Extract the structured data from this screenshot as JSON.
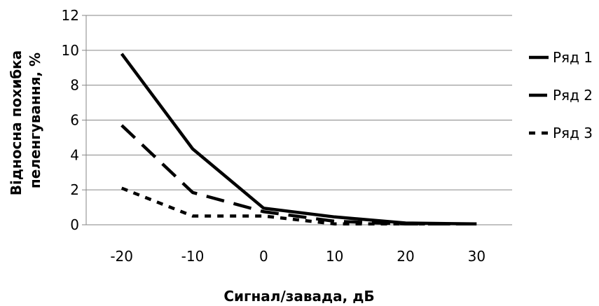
{
  "chart_data": {
    "type": "line",
    "title": "",
    "x": [
      -20,
      -10,
      0,
      10,
      20,
      30
    ],
    "x_tick_labels": [
      "-20",
      "-10",
      "0",
      "10",
      "20",
      "30"
    ],
    "xlabel": "Сигнал/завада, дБ",
    "ylabel_lines": [
      "Відносна похибка",
      "пеленгування, %"
    ],
    "ylim": [
      0,
      12
    ],
    "y_ticks": [
      0,
      2,
      4,
      6,
      8,
      10,
      12
    ],
    "y_tick_labels": [
      "0",
      "2",
      "4",
      "6",
      "8",
      "10",
      "12"
    ],
    "grid": "horizontal",
    "legend_position": "right",
    "series": [
      {
        "name": "Ряд 1",
        "style": "solid",
        "values": [
          9.8,
          4.35,
          0.95,
          0.45,
          0.1,
          0.05
        ]
      },
      {
        "name": "Ряд 2",
        "style": "dashed",
        "values": [
          5.7,
          1.85,
          0.75,
          0.2,
          0.05,
          0.05
        ]
      },
      {
        "name": "Ряд 3",
        "style": "dotted",
        "values": [
          2.1,
          0.5,
          0.5,
          0.05,
          0.05,
          0.05
        ]
      }
    ],
    "colors": {
      "line": "#000000",
      "grid": "#868686"
    }
  }
}
